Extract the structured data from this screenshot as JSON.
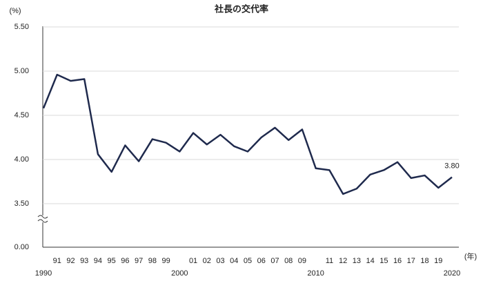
{
  "chart_data": {
    "type": "line",
    "title": "社長の交代率",
    "y_unit": "(%)",
    "x_unit": "(年)",
    "categories": [
      "1990",
      "91",
      "92",
      "93",
      "94",
      "95",
      "96",
      "97",
      "98",
      "99",
      "2000",
      "01",
      "02",
      "03",
      "04",
      "05",
      "06",
      "07",
      "08",
      "09",
      "2010",
      "11",
      "12",
      "13",
      "14",
      "15",
      "16",
      "17",
      "18",
      "19",
      "2020"
    ],
    "values": [
      4.58,
      4.96,
      4.89,
      4.91,
      4.06,
      3.86,
      4.16,
      3.98,
      4.23,
      4.19,
      4.09,
      4.3,
      4.17,
      4.28,
      4.15,
      4.09,
      4.25,
      4.36,
      4.22,
      4.34,
      3.9,
      3.88,
      3.61,
      3.67,
      3.83,
      3.88,
      3.97,
      3.79,
      3.82,
      3.68,
      3.8
    ],
    "value_labels": [
      null,
      null,
      null,
      null,
      null,
      null,
      null,
      null,
      null,
      null,
      null,
      null,
      null,
      null,
      null,
      null,
      null,
      null,
      null,
      null,
      null,
      null,
      null,
      null,
      null,
      null,
      null,
      null,
      null,
      null,
      "3.80"
    ],
    "color": "#1f2a4d",
    "ylim": [
      0,
      5.5
    ],
    "axis_break": [
      0,
      3.5
    ],
    "yticks": [
      {
        "value": 0,
        "label": "0.00"
      },
      {
        "value": 3.5,
        "label": "3.50"
      },
      {
        "value": 4,
        "label": "4.00"
      },
      {
        "value": 4.5,
        "label": "4.50"
      },
      {
        "value": 5,
        "label": "5.00"
      },
      {
        "value": 5.5,
        "label": "5.50"
      }
    ],
    "grid": true
  }
}
